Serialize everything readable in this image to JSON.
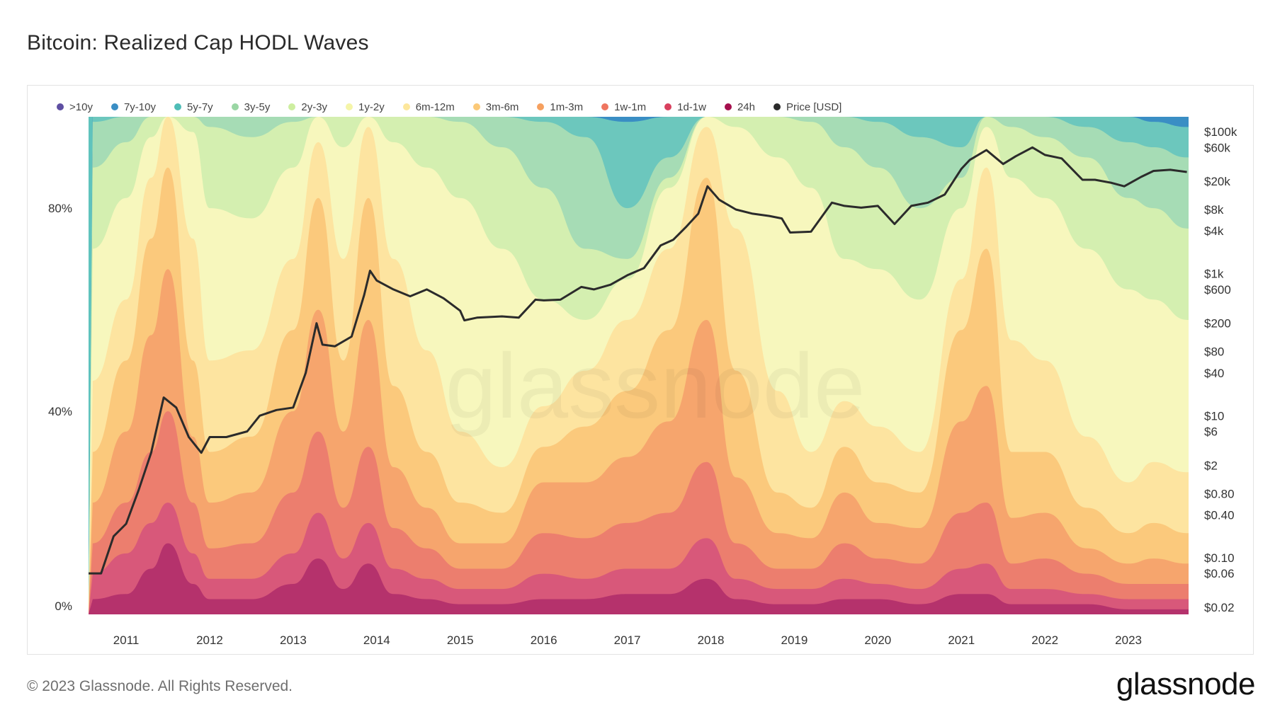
{
  "title": "Bitcoin: Realized Cap HODL Waves",
  "footer": {
    "copyright": "© 2023 Glassnode. All Rights Reserved.",
    "logo": "glassnode"
  },
  "watermark": "glassnode",
  "chart_data": {
    "type": "area",
    "stacked": true,
    "title": "Bitcoin: Realized Cap HODL Waves",
    "x": [
      2010.6,
      2011.0,
      2011.3,
      2011.5,
      2011.8,
      2012.0,
      2012.5,
      2013.0,
      2013.3,
      2013.6,
      2013.9,
      2014.2,
      2014.6,
      2015.0,
      2015.5,
      2016.0,
      2016.5,
      2017.0,
      2017.5,
      2017.95,
      2018.3,
      2018.8,
      2019.2,
      2019.6,
      2020.0,
      2020.5,
      2021.0,
      2021.3,
      2021.6,
      2022.0,
      2022.5,
      2023.0,
      2023.3,
      2023.7
    ],
    "xlabel": "",
    "x_ticks": [
      "2011",
      "2012",
      "2013",
      "2014",
      "2015",
      "2016",
      "2017",
      "2018",
      "2019",
      "2020",
      "2021",
      "2022",
      "2023"
    ],
    "y_left_ticks": [
      "0%",
      "40%",
      "80%"
    ],
    "y_left_range": [
      0,
      100
    ],
    "y_right_ticks": [
      "$100k",
      "$60k",
      "$20k",
      "$8k",
      "$4k",
      "$1k",
      "$600",
      "$200",
      "$80",
      "$40",
      "$10",
      "$6",
      "$2",
      "$0.80",
      "$0.40",
      "$0.10",
      "$0.06",
      "$0.02"
    ],
    "y_right_scale": "log",
    "grid": false,
    "legend_position": "top",
    "series": [
      {
        "name": "24h",
        "color": "#b5326c",
        "values": [
          3,
          4,
          9,
          14,
          6,
          3,
          3,
          6,
          11,
          5,
          10,
          4,
          3,
          2,
          2,
          3,
          3,
          4,
          4,
          7,
          3,
          2,
          2,
          3,
          3,
          2,
          4,
          4,
          2,
          2,
          2,
          1,
          1,
          1
        ]
      },
      {
        "name": "1d-1w",
        "color": "#d8587a",
        "values": [
          8,
          12,
          18,
          22,
          12,
          7,
          7,
          12,
          20,
          11,
          18,
          9,
          7,
          5,
          5,
          8,
          7,
          9,
          9,
          15,
          7,
          5,
          5,
          7,
          6,
          5,
          9,
          10,
          5,
          5,
          4,
          3,
          3,
          3
        ]
      },
      {
        "name": "1w-1m",
        "color": "#ec7e6e",
        "values": [
          14,
          22,
          32,
          40,
          22,
          13,
          14,
          24,
          36,
          21,
          33,
          17,
          13,
          9,
          9,
          16,
          15,
          18,
          20,
          30,
          14,
          9,
          9,
          14,
          11,
          10,
          20,
          22,
          10,
          11,
          8,
          6,
          6,
          6
        ]
      },
      {
        "name": "1m-3m",
        "color": "#f6a56d",
        "values": [
          22,
          36,
          55,
          68,
          35,
          22,
          24,
          40,
          60,
          36,
          58,
          29,
          21,
          14,
          14,
          26,
          26,
          31,
          38,
          58,
          27,
          16,
          15,
          24,
          18,
          17,
          38,
          45,
          19,
          20,
          13,
          10,
          11,
          10
        ]
      },
      {
        "name": "3m-6m",
        "color": "#fbc97c",
        "values": [
          32,
          50,
          74,
          88,
          50,
          32,
          35,
          56,
          82,
          50,
          82,
          45,
          32,
          22,
          20,
          33,
          37,
          44,
          56,
          86,
          48,
          24,
          21,
          33,
          26,
          24,
          56,
          72,
          32,
          32,
          21,
          16,
          18,
          16
        ]
      },
      {
        "name": "6m-12m",
        "color": "#fde4a0",
        "values": [
          46,
          62,
          86,
          98,
          74,
          50,
          52,
          70,
          93,
          70,
          96,
          70,
          52,
          36,
          29,
          41,
          48,
          58,
          72,
          96,
          76,
          44,
          32,
          42,
          37,
          32,
          66,
          88,
          54,
          50,
          35,
          26,
          30,
          28
        ]
      },
      {
        "name": "1y-2y",
        "color": "#f7f7bd",
        "values": [
          72,
          82,
          94,
          100,
          95,
          80,
          78,
          88,
          98,
          92,
          100,
          93,
          88,
          82,
          72,
          62,
          58,
          66,
          84,
          100,
          96,
          90,
          84,
          70,
          68,
          62,
          80,
          96,
          86,
          82,
          72,
          64,
          62,
          58
        ]
      },
      {
        "name": "2y-3y",
        "color": "#d4efb0",
        "values": [
          88,
          93,
          98,
          100,
          99,
          96,
          94,
          97,
          100,
          98,
          100,
          99,
          98,
          97,
          92,
          84,
          72,
          70,
          86,
          100,
          99,
          98,
          97,
          92,
          88,
          80,
          86,
          98,
          96,
          94,
          90,
          82,
          80,
          76
        ]
      },
      {
        "name": "3y-5y",
        "color": "#a6dcb5",
        "values": [
          97,
          98,
          99,
          100,
          100,
          99,
          99,
          99,
          100,
          100,
          100,
          100,
          100,
          99,
          99,
          97,
          94,
          80,
          90,
          100,
          100,
          100,
          99,
          98,
          97,
          94,
          92,
          99,
          99,
          98,
          96,
          93,
          92,
          90
        ]
      },
      {
        "name": "5y-7y",
        "color": "#6cc7bd",
        "values": [
          100,
          100,
          100,
          100,
          100,
          100,
          100,
          100,
          100,
          100,
          100,
          100,
          100,
          100,
          100,
          100,
          99,
          97,
          98,
          100,
          100,
          100,
          100,
          100,
          100,
          99,
          98,
          100,
          100,
          100,
          99,
          98,
          97,
          96
        ]
      },
      {
        "name": "7y-10y",
        "color": "#3a8ec4",
        "values": [
          100,
          100,
          100,
          100,
          100,
          100,
          100,
          100,
          100,
          100,
          100,
          100,
          100,
          100,
          100,
          100,
          100,
          100,
          100,
          100,
          100,
          100,
          100,
          100,
          100,
          100,
          100,
          100,
          100,
          100,
          100,
          100,
          100,
          100
        ]
      },
      {
        "name": ">10y",
        "color": "#5e4fa2",
        "values": [
          100,
          100,
          100,
          100,
          100,
          100,
          100,
          100,
          100,
          100,
          100,
          100,
          100,
          100,
          100,
          100,
          100,
          100,
          100,
          100,
          100,
          100,
          100,
          100,
          100,
          100,
          100,
          100,
          100,
          100,
          100,
          100,
          100,
          100
        ]
      }
    ],
    "legend": [
      {
        "label": ">10y",
        "color": "#5e4fa2"
      },
      {
        "label": "7y-10y",
        "color": "#3a8ec4"
      },
      {
        "label": "5y-7y",
        "color": "#4fbdb7"
      },
      {
        "label": "3y-5y",
        "color": "#9ad6a4"
      },
      {
        "label": "2y-3y",
        "color": "#cdeea0"
      },
      {
        "label": "1y-2y",
        "color": "#f5f5a8"
      },
      {
        "label": "6m-12m",
        "color": "#fde79c"
      },
      {
        "label": "3m-6m",
        "color": "#fbc978"
      },
      {
        "label": "1m-3m",
        "color": "#f6a05f"
      },
      {
        "label": "1w-1m",
        "color": "#ef7560"
      },
      {
        "label": "1d-1w",
        "color": "#d9405e"
      },
      {
        "label": "24h",
        "color": "#a50f4d"
      },
      {
        "label": "Price [USD]",
        "color": "#2b2b2b"
      }
    ],
    "price": {
      "name": "Price [USD]",
      "color": "#2b2b2b",
      "x": [
        2010.55,
        2010.7,
        2010.85,
        2011.0,
        2011.15,
        2011.3,
        2011.45,
        2011.6,
        2011.75,
        2011.9,
        2012.0,
        2012.2,
        2012.45,
        2012.6,
        2012.8,
        2013.0,
        2013.15,
        2013.28,
        2013.35,
        2013.5,
        2013.7,
        2013.85,
        2013.92,
        2014.0,
        2014.2,
        2014.4,
        2014.6,
        2014.8,
        2015.0,
        2015.05,
        2015.2,
        2015.5,
        2015.7,
        2015.9,
        2016.0,
        2016.2,
        2016.45,
        2016.6,
        2016.8,
        2017.0,
        2017.2,
        2017.4,
        2017.55,
        2017.7,
        2017.85,
        2017.96,
        2018.1,
        2018.3,
        2018.5,
        2018.7,
        2018.85,
        2018.95,
        2019.2,
        2019.45,
        2019.6,
        2019.8,
        2020.0,
        2020.2,
        2020.4,
        2020.6,
        2020.8,
        2021.0,
        2021.1,
        2021.3,
        2021.5,
        2021.65,
        2021.85,
        2022.0,
        2022.2,
        2022.45,
        2022.6,
        2022.8,
        2022.95,
        2023.15,
        2023.3,
        2023.5,
        2023.7
      ],
      "y": [
        0.06,
        0.06,
        0.2,
        0.3,
        0.9,
        3,
        18,
        13,
        5,
        3,
        5,
        5,
        6,
        10,
        12,
        13,
        40,
        200,
        100,
        95,
        130,
        500,
        1100,
        800,
        600,
        480,
        600,
        450,
        300,
        220,
        240,
        250,
        240,
        430,
        420,
        430,
        650,
        600,
        700,
        950,
        1200,
        2500,
        3000,
        4500,
        7000,
        17000,
        11000,
        8000,
        7000,
        6500,
        6000,
        3800,
        3900,
        10000,
        9000,
        8500,
        9000,
        5000,
        9000,
        10000,
        13000,
        30000,
        40000,
        55000,
        35000,
        45000,
        60000,
        47000,
        42000,
        21000,
        21000,
        19000,
        17000,
        23000,
        28000,
        29000,
        27000
      ]
    }
  }
}
